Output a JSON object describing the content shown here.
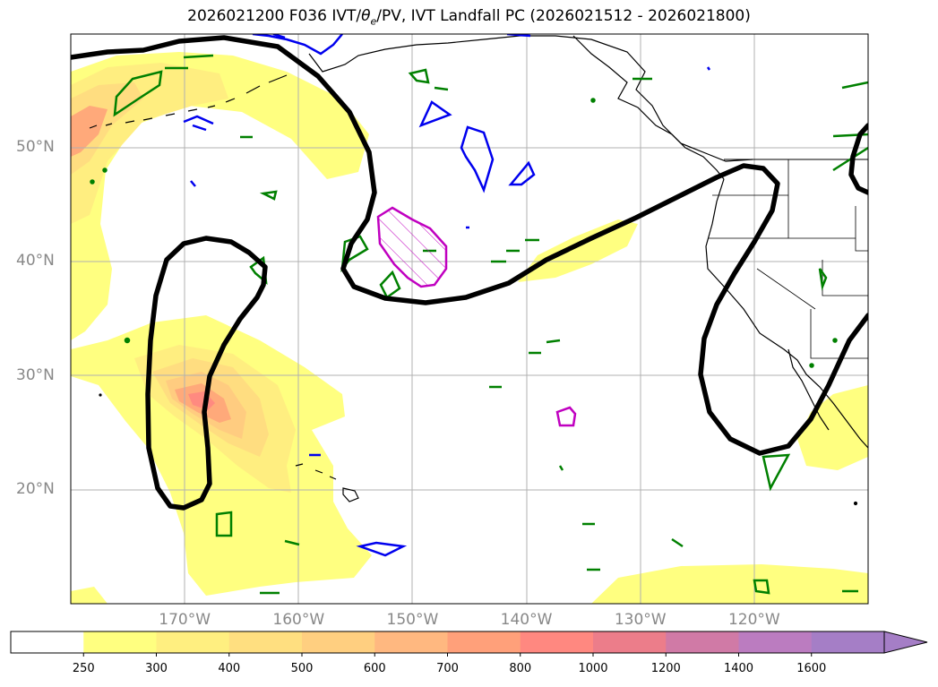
{
  "title": {
    "prefix": "2026021200 F036 IVT/",
    "theta_sym": "θ",
    "theta_sub": "e",
    "suffix": "/PV, IVT Landfall PC (2026021512 - 2026021800)"
  },
  "map": {
    "lon_min": -180,
    "lon_max": -110,
    "lat_min": 10,
    "lat_max": 60,
    "lat_labels": [
      {
        "lat": 50,
        "text": "50°N"
      },
      {
        "lat": 40,
        "text": "40°N"
      },
      {
        "lat": 30,
        "text": "30°N"
      },
      {
        "lat": 20,
        "text": "20°N"
      }
    ],
    "lon_labels": [
      {
        "lon": -170,
        "text": "170°W"
      },
      {
        "lon": -160,
        "text": "160°W"
      },
      {
        "lon": -150,
        "text": "150°W"
      },
      {
        "lon": -140,
        "text": "140°W"
      },
      {
        "lon": -130,
        "text": "130°W"
      },
      {
        "lon": -120,
        "text": "120°W"
      }
    ],
    "gridlines": true
  },
  "colors": {
    "ivt_250": "#ffff80",
    "ivt_300": "#ffee80",
    "ivt_400": "#ffdd80",
    "ivt_500": "#ffcc80",
    "ivt_600": "#ffa97a",
    "ivt_800": "#ff8a80",
    "pv_contour": "#000000",
    "theta_e_positive": "#008000",
    "theta_e_negative": "#0000ee",
    "landfall_pc": "#c000c0",
    "coastline": "#000000",
    "grid": "#b0b0b0"
  },
  "colorbar": {
    "ticks": [
      "250",
      "300",
      "400",
      "500",
      "600",
      "700",
      "800",
      "1000",
      "1200",
      "1400",
      "1600"
    ],
    "colors": [
      "#ffffff",
      "#ffff80",
      "#ffef80",
      "#ffdf80",
      "#ffcf80",
      "#ffb880",
      "#ffa07a",
      "#ff8880",
      "#ec7d8a",
      "#d07aa6",
      "#bb7cc0",
      "#a57ec6"
    ],
    "extend": "max"
  }
}
